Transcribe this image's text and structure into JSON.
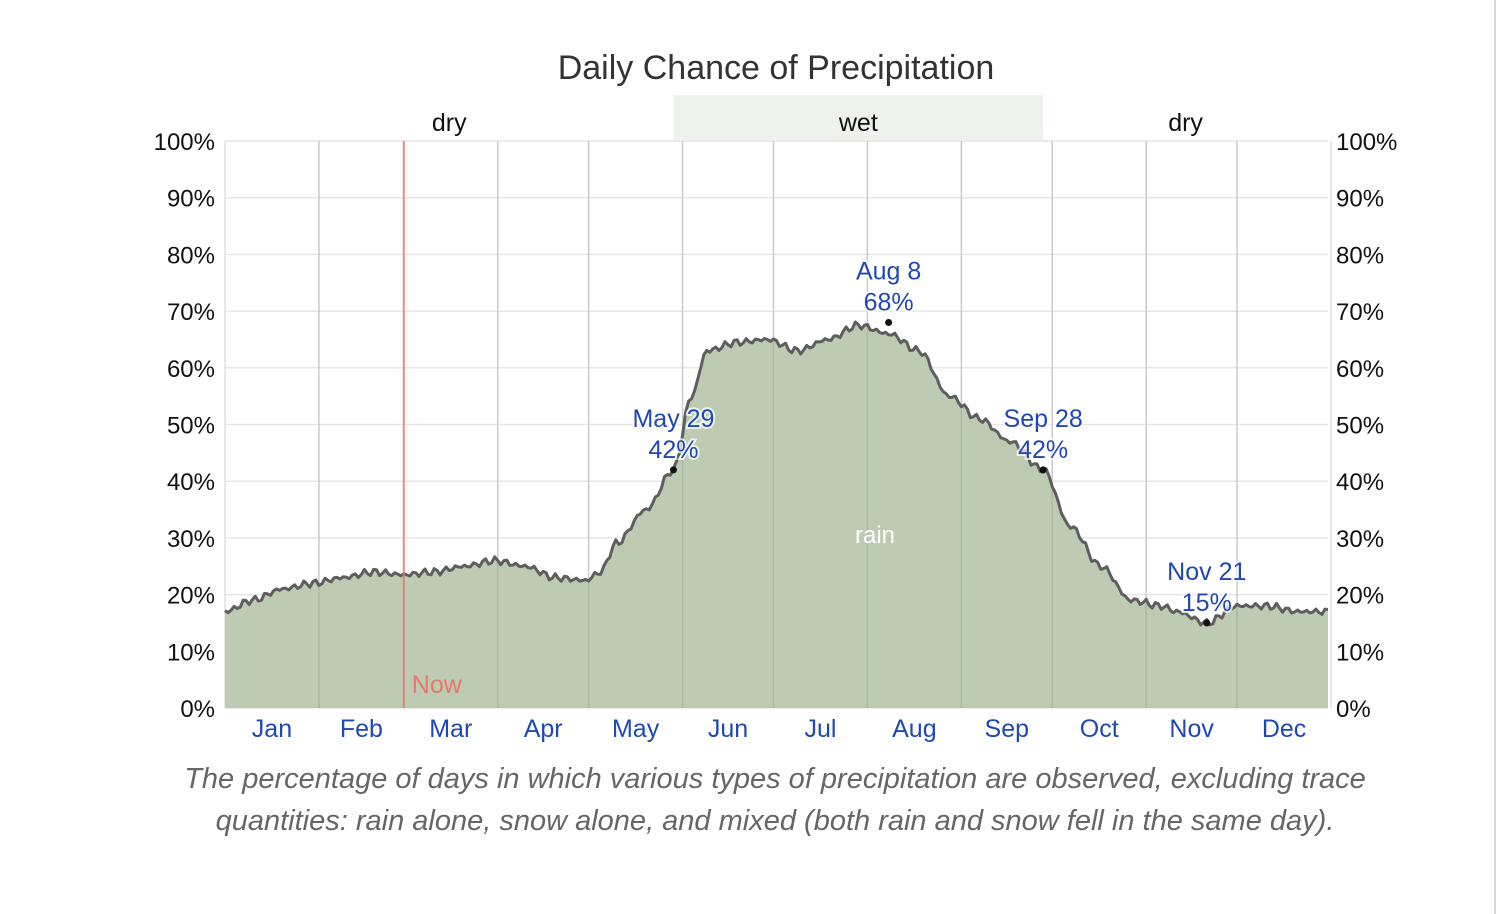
{
  "chart_data": {
    "type": "area",
    "title": "Daily Chance of Precipitation",
    "xlabel": "",
    "ylabel": "",
    "ylim": [
      0,
      100
    ],
    "y_ticks": [
      "0%",
      "10%",
      "20%",
      "30%",
      "40%",
      "50%",
      "60%",
      "70%",
      "80%",
      "90%",
      "100%"
    ],
    "y_tick_values": [
      0,
      10,
      20,
      30,
      40,
      50,
      60,
      70,
      80,
      90,
      100
    ],
    "months": [
      "Jan",
      "Feb",
      "Mar",
      "Apr",
      "May",
      "Jun",
      "Jul",
      "Aug",
      "Sep",
      "Oct",
      "Nov",
      "Dec"
    ],
    "grid": true,
    "series": [
      {
        "name": "rain",
        "color": "#bccbb2",
        "line_color": "#5e5e5e",
        "x_day": [
          1,
          10,
          20,
          30,
          40,
          50,
          60,
          70,
          80,
          90,
          100,
          110,
          120,
          125,
          130,
          140,
          149,
          155,
          160,
          170,
          180,
          190,
          200,
          210,
          220,
          230,
          240,
          250,
          260,
          271,
          280,
          290,
          300,
          310,
          315,
          325,
          335,
          345,
          355,
          365
        ],
        "values": [
          17,
          19,
          21,
          22,
          23,
          24,
          23.5,
          24,
          25,
          26,
          25,
          23,
          22.5,
          24,
          29,
          35,
          42,
          55,
          63,
          64.5,
          65,
          63,
          65,
          67.5,
          66,
          63,
          55,
          51,
          47,
          42,
          32,
          25,
          19,
          18,
          17,
          15,
          18,
          18,
          17,
          17
        ]
      }
    ],
    "annotations": [
      {
        "date": "May 29",
        "value_label": "42%",
        "day": 149,
        "value": 42
      },
      {
        "date": "Aug 8",
        "value_label": "68%",
        "day": 220,
        "value": 68
      },
      {
        "date": "Sep 28",
        "value_label": "42%",
        "day": 271,
        "value": 42
      },
      {
        "date": "Nov 21",
        "value_label": "15%",
        "day": 325,
        "value": 15
      }
    ],
    "seasons": [
      {
        "label": "dry",
        "start_day": 1,
        "end_day": 149
      },
      {
        "label": "wet",
        "start_day": 149,
        "end_day": 271,
        "color": "#eef2ec"
      },
      {
        "label": "dry",
        "start_day": 271,
        "end_day": 365
      }
    ],
    "now": {
      "label": "Now",
      "day": 60,
      "color": "#e8796c"
    },
    "series_label": "rain"
  },
  "caption": "The percentage of days in which various types of precipitation are observed, excluding trace quantities: rain alone, snow alone, and mixed (both rain and snow fell in the same day)."
}
